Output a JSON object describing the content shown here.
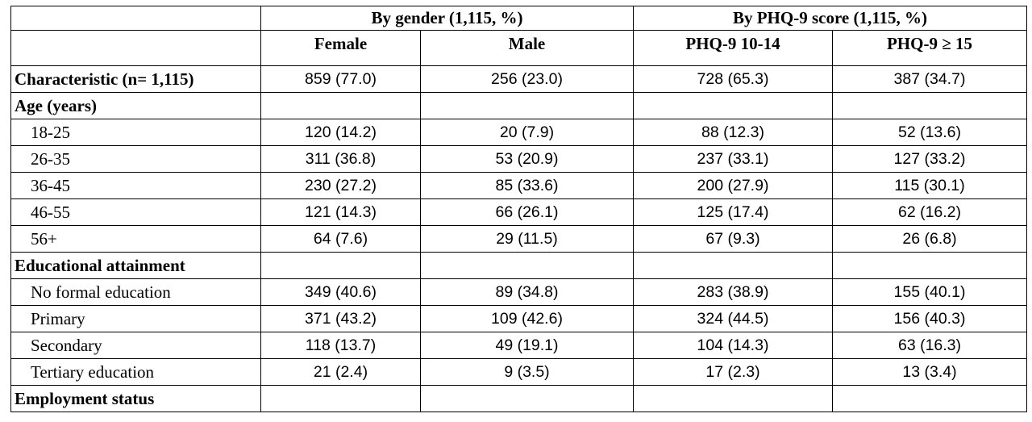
{
  "header": {
    "group_gender": "By gender (1,115, %)",
    "group_phq": "By PHQ-9 score (1,115, %)",
    "columns": [
      "Female",
      "Male",
      "PHQ-9 10-14",
      "PHQ-9 ≥ 15"
    ]
  },
  "rows": [
    {
      "label": "Characteristic (n= 1,115)",
      "type": "bold-values",
      "values": [
        "859 (77.0)",
        "256 (23.0)",
        "728 (65.3)",
        "387 (34.7)"
      ]
    },
    {
      "label": "Age (years)",
      "type": "section",
      "values": [
        "",
        "",
        "",
        ""
      ]
    },
    {
      "label": "18-25",
      "type": "item",
      "values": [
        "120 (14.2)",
        "20 (7.9)",
        "88 (12.3)",
        "52 (13.6)"
      ]
    },
    {
      "label": "26-35",
      "type": "item",
      "values": [
        "311 (36.8)",
        "53 (20.9)",
        "237 (33.1)",
        "127 (33.2)"
      ]
    },
    {
      "label": "36-45",
      "type": "item",
      "values": [
        "230 (27.2)",
        "85 (33.6)",
        "200 (27.9)",
        "115 (30.1)"
      ]
    },
    {
      "label": "46-55",
      "type": "item",
      "values": [
        "121 (14.3)",
        "66 (26.1)",
        "125 (17.4)",
        "62 (16.2)"
      ]
    },
    {
      "label": "56+",
      "type": "item",
      "values": [
        "64 (7.6)",
        "29 (11.5)",
        "67 (9.3)",
        "26 (6.8)"
      ]
    },
    {
      "label": "Educational attainment",
      "type": "section",
      "values": [
        "",
        "",
        "",
        ""
      ]
    },
    {
      "label": "No formal education",
      "type": "item",
      "values": [
        "349 (40.6)",
        "89 (34.8)",
        "283 (38.9)",
        "155 (40.1)"
      ]
    },
    {
      "label": "Primary",
      "type": "item",
      "values": [
        "371 (43.2)",
        "109 (42.6)",
        "324 (44.5)",
        "156 (40.3)"
      ]
    },
    {
      "label": "Secondary",
      "type": "item",
      "values": [
        "118 (13.7)",
        "49 (19.1)",
        "104 (14.3)",
        "63 (16.3)"
      ]
    },
    {
      "label": "Tertiary education",
      "type": "item",
      "values": [
        "21 (2.4)",
        "9 (3.5)",
        "17 (2.3)",
        "13 (3.4)"
      ]
    },
    {
      "label": "Employment status",
      "type": "section",
      "values": [
        "",
        "",
        "",
        ""
      ]
    }
  ]
}
